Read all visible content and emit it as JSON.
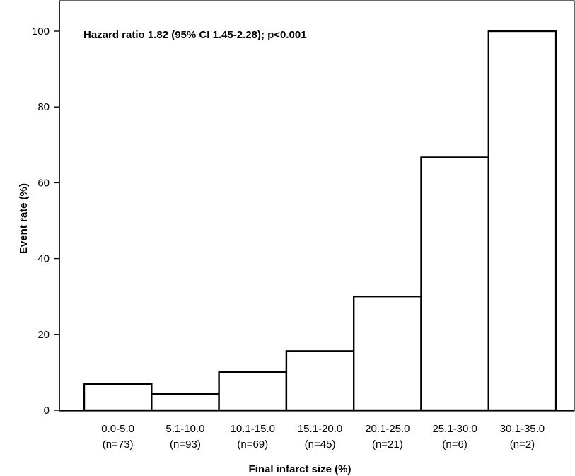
{
  "chart_data": {
    "type": "bar",
    "categories": [
      "0.0-5.0",
      "5.1-10.0",
      "10.1-15.0",
      "15.1-20.0",
      "20.1-25.0",
      "25.1-30.0",
      "30.1-35.0"
    ],
    "sample_sizes": [
      "(n=73)",
      "(n=93)",
      "(n=69)",
      "(n=45)",
      "(n=21)",
      "(n=6)",
      "(n=2)"
    ],
    "values": [
      6.9,
      4.3,
      10.1,
      15.6,
      30.0,
      66.7,
      100.0
    ],
    "xlabel": "Final infarct size (%)",
    "ylabel": "Event rate (%)",
    "ylim": [
      0,
      100
    ],
    "yticks": [
      0,
      20,
      40,
      60,
      80,
      100
    ],
    "annotation": "Hazard ratio 1.82 (95% CI 1.45-2.28); p<0.001",
    "grid": false
  }
}
